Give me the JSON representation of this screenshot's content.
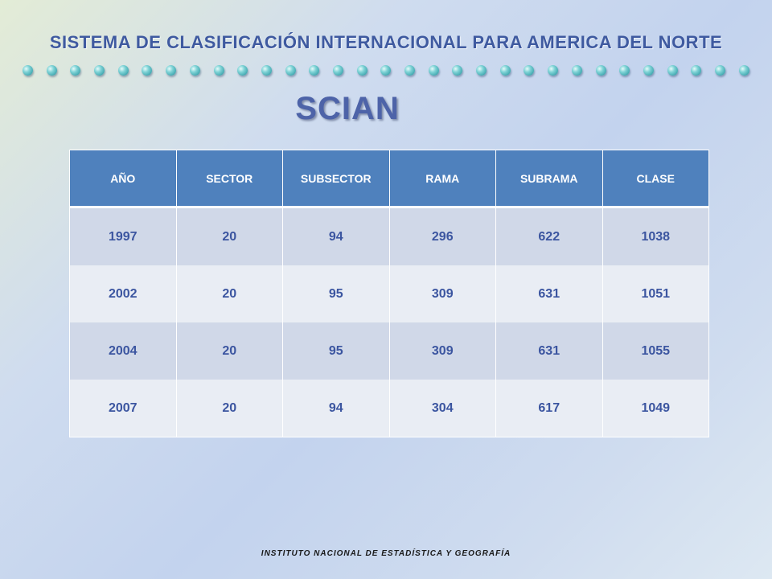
{
  "header": {
    "title": "SISTEMA DE CLASIFICACIÓN  INTERNACIONAL  PARA AMERICA DEL NORTE",
    "subtitle": "SCIAN",
    "accent_color": "#3f5aa0",
    "dot_color": "#2aa3ad"
  },
  "table": {
    "header_color": "#4f81bd",
    "columns": [
      "AÑO",
      "SECTOR",
      "SUBSECTOR",
      "RAMA",
      "SUBRAMA",
      "CLASE"
    ],
    "rows": [
      [
        "1997",
        "20",
        "94",
        "296",
        "622",
        "1038"
      ],
      [
        "2002",
        "20",
        "95",
        "309",
        "631",
        "1051"
      ],
      [
        "2004",
        "20",
        "95",
        "309",
        "631",
        "1055"
      ],
      [
        "2007",
        "20",
        "94",
        "304",
        "617",
        "1049"
      ]
    ]
  },
  "footer": {
    "text": "INSTITUTO NACIONAL DE ESTADÍSTICA Y GEOGRAFÍA"
  }
}
